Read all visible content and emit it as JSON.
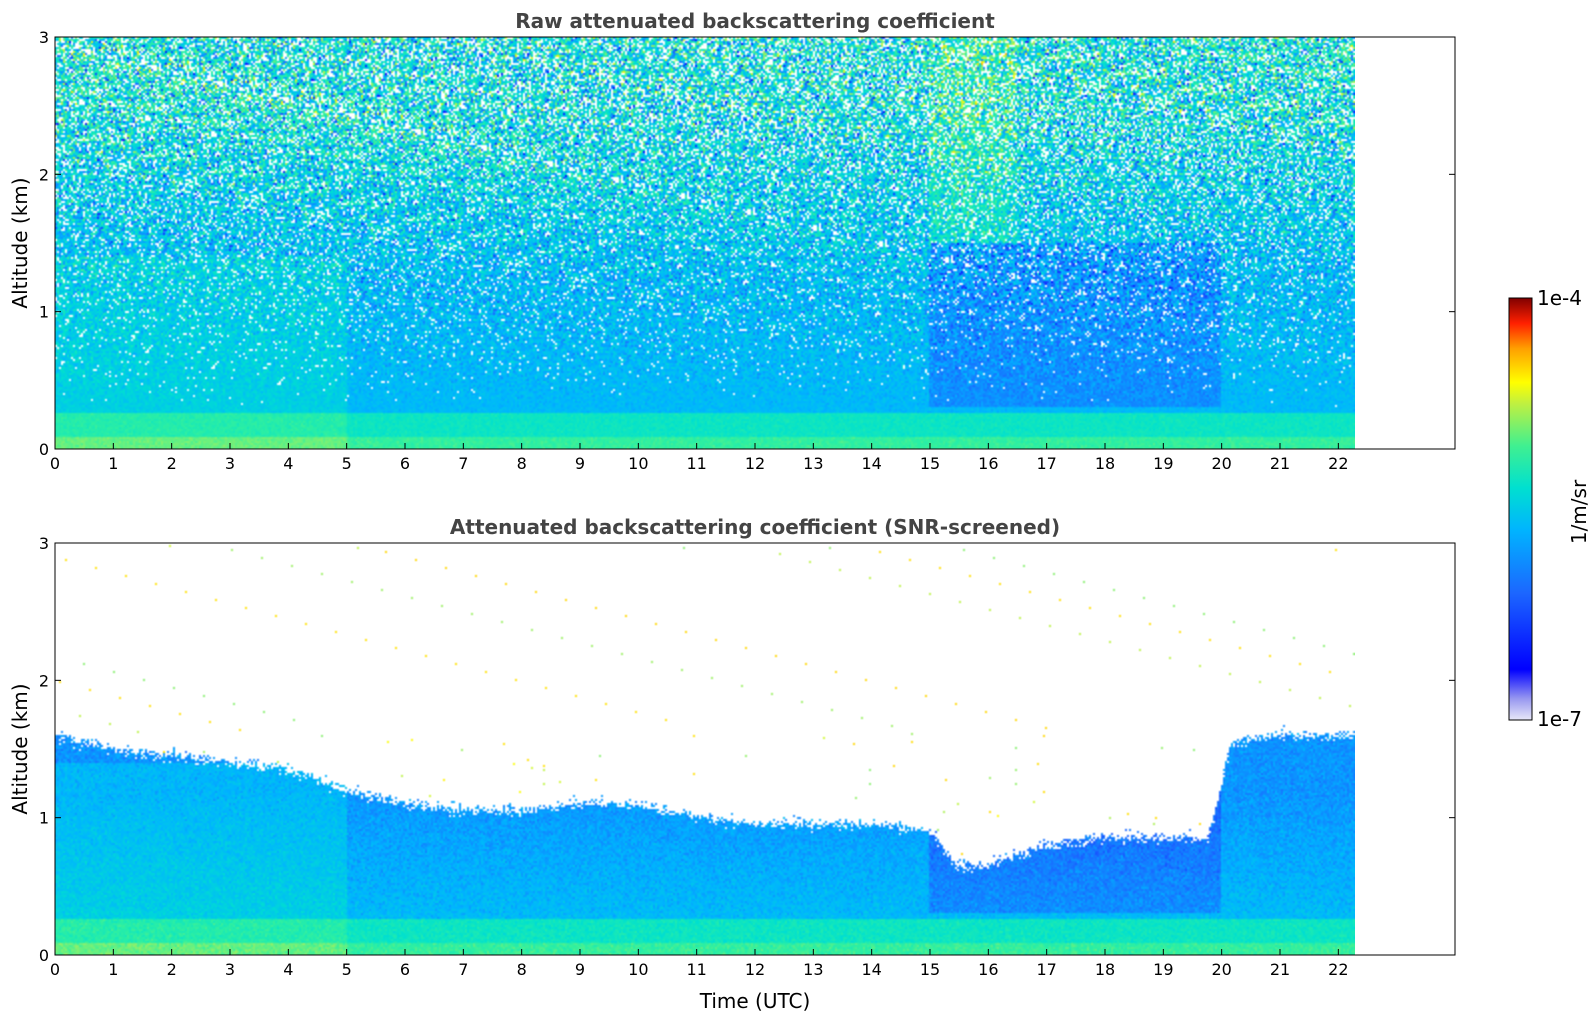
{
  "chart_data": [
    {
      "type": "heatmap",
      "title": "Raw attenuated backscattering coefficient",
      "xlabel": "",
      "ylabel": "Altitude (km)",
      "xlim": [
        0,
        24
      ],
      "ylim": [
        0,
        3
      ],
      "x_ticks": [
        "0",
        "1",
        "2",
        "3",
        "4",
        "5",
        "6",
        "7",
        "8",
        "9",
        "10",
        "11",
        "12",
        "13",
        "14",
        "15",
        "16",
        "17",
        "18",
        "19",
        "20",
        "21",
        "22"
      ],
      "y_ticks": [
        "0",
        "1",
        "2",
        "3"
      ],
      "data_extent_x": [
        0,
        22.3
      ],
      "screened": false
    },
    {
      "type": "heatmap",
      "title": "Attenuated backscattering coefficient (SNR-screened)",
      "xlabel": "Time (UTC)",
      "ylabel": "Altitude (km)",
      "xlim": [
        0,
        24
      ],
      "ylim": [
        0,
        3
      ],
      "x_ticks": [
        "0",
        "1",
        "2",
        "3",
        "4",
        "5",
        "6",
        "7",
        "8",
        "9",
        "10",
        "11",
        "12",
        "13",
        "14",
        "15",
        "16",
        "17",
        "18",
        "19",
        "20",
        "21",
        "22"
      ],
      "y_ticks": [
        "0",
        "1",
        "2",
        "3"
      ],
      "data_extent_x": [
        0,
        22.3
      ],
      "screened": true,
      "signal_top_km": [
        [
          0,
          1.6
        ],
        [
          1,
          1.5
        ],
        [
          2,
          1.45
        ],
        [
          3,
          1.4
        ],
        [
          4,
          1.35
        ],
        [
          5,
          1.2
        ],
        [
          6,
          1.1
        ],
        [
          7,
          1.05
        ],
        [
          8,
          1.05
        ],
        [
          9,
          1.1
        ],
        [
          10,
          1.1
        ],
        [
          11,
          1.0
        ],
        [
          12,
          0.95
        ],
        [
          13,
          0.95
        ],
        [
          14,
          0.95
        ],
        [
          15,
          0.9
        ],
        [
          15.5,
          0.65
        ],
        [
          16,
          0.65
        ],
        [
          17,
          0.8
        ],
        [
          18,
          0.85
        ],
        [
          19,
          0.85
        ],
        [
          19.8,
          0.85
        ],
        [
          20.2,
          1.55
        ],
        [
          21,
          1.6
        ],
        [
          22,
          1.6
        ],
        [
          22.3,
          1.6
        ]
      ]
    }
  ],
  "colorbar": {
    "label": "1/m/sr",
    "max_label": "1e-4",
    "min_label": "1e-7",
    "scale": "log",
    "range": [
      1e-07,
      0.0001
    ],
    "colors": [
      "#e8e8f8",
      "#9090f0",
      "#0000ff",
      "#1c66ff",
      "#00b4ff",
      "#00e0d0",
      "#30f0a0",
      "#a0f060",
      "#ffff00",
      "#ffb000",
      "#ff4000",
      "#c00000",
      "#800000"
    ]
  }
}
